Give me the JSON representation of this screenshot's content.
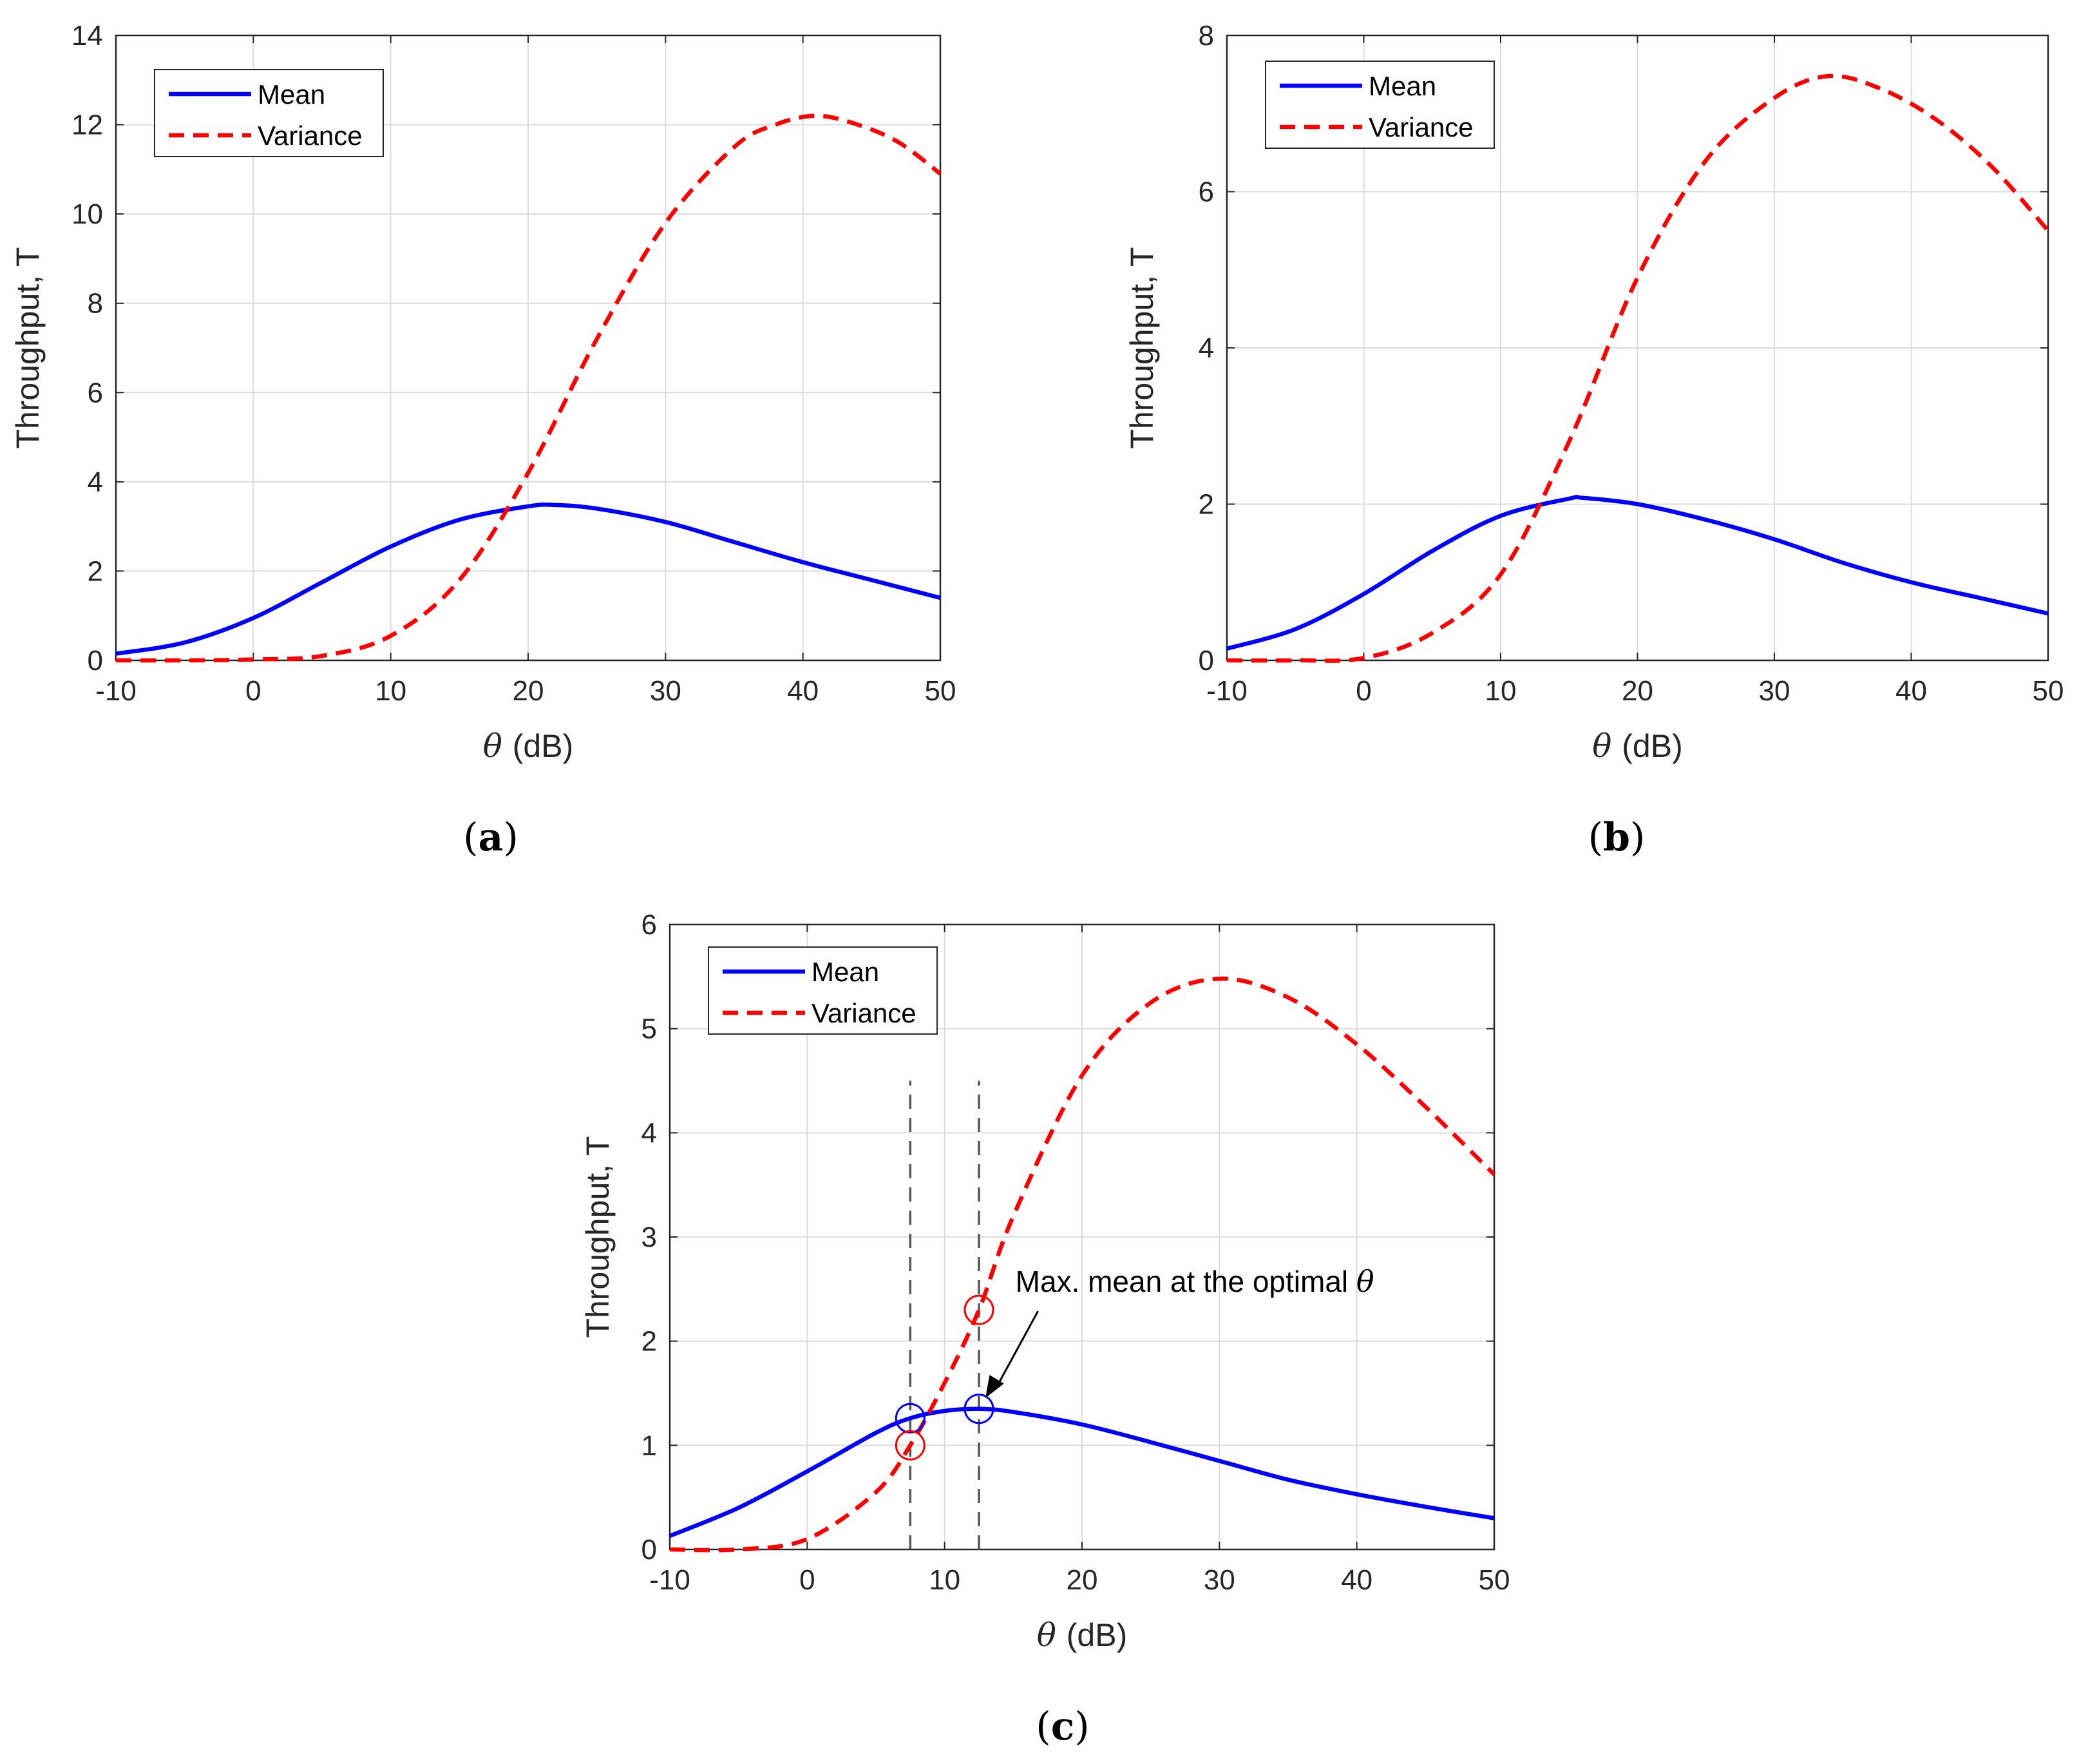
{
  "chart_data": [
    {
      "id": "a",
      "type": "line",
      "panel_label": "(a)",
      "xlabel": "(dB)",
      "xlabel_symbol": "θ",
      "ylabel": "Throughput, T",
      "xlim": [
        -10,
        50
      ],
      "ylim": [
        0,
        14
      ],
      "xticks": [
        -10,
        0,
        10,
        20,
        30,
        40,
        50
      ],
      "yticks": [
        0,
        2,
        4,
        6,
        8,
        10,
        12,
        14
      ],
      "grid": true,
      "legend": {
        "placement": "top-left",
        "entries": [
          "Mean",
          "Variance"
        ]
      },
      "series": [
        {
          "name": "Mean",
          "color": "#0000ff",
          "style": "solid",
          "x": [
            -10,
            -5,
            0,
            5,
            10,
            15,
            20,
            22,
            25,
            30,
            35,
            40,
            45,
            50
          ],
          "values": [
            0.15,
            0.4,
            0.95,
            1.75,
            2.55,
            3.15,
            3.45,
            3.48,
            3.4,
            3.1,
            2.65,
            2.2,
            1.8,
            1.4
          ]
        },
        {
          "name": "Variance",
          "color": "#ff0000",
          "style": "dashed",
          "x": [
            -10,
            -5,
            0,
            5,
            10,
            15,
            20,
            25,
            30,
            35,
            38,
            41,
            44,
            47,
            50
          ],
          "values": [
            0,
            0,
            0.02,
            0.1,
            0.55,
            1.8,
            4.2,
            7.2,
            9.8,
            11.5,
            12.0,
            12.2,
            12.0,
            11.6,
            10.9
          ]
        }
      ]
    },
    {
      "id": "b",
      "type": "line",
      "panel_label": "(b)",
      "xlabel": "(dB)",
      "xlabel_symbol": "θ",
      "ylabel": "Throughput, T",
      "xlim": [
        -10,
        50
      ],
      "ylim": [
        0,
        8
      ],
      "xticks": [
        -10,
        0,
        10,
        20,
        30,
        40,
        50
      ],
      "yticks": [
        0,
        2,
        4,
        6,
        8
      ],
      "grid": true,
      "legend": {
        "placement": "top-left",
        "entries": [
          "Mean",
          "Variance"
        ]
      },
      "series": [
        {
          "name": "Mean",
          "color": "#0000ff",
          "style": "solid",
          "x": [
            -10,
            -5,
            0,
            5,
            10,
            15,
            16,
            20,
            25,
            30,
            35,
            40,
            45,
            50
          ],
          "values": [
            0.15,
            0.4,
            0.85,
            1.4,
            1.85,
            2.07,
            2.08,
            2.0,
            1.8,
            1.55,
            1.25,
            1.0,
            0.8,
            0.6
          ]
        },
        {
          "name": "Variance",
          "color": "#ff0000",
          "style": "dashed",
          "x": [
            -10,
            -5,
            0,
            5,
            10,
            15,
            20,
            25,
            30,
            34,
            38,
            42,
            46,
            50
          ],
          "values": [
            0,
            0,
            0.03,
            0.35,
            1.1,
            2.8,
            4.9,
            6.4,
            7.2,
            7.48,
            7.3,
            6.9,
            6.3,
            5.5
          ]
        }
      ]
    },
    {
      "id": "c",
      "type": "line",
      "panel_label": "(c)",
      "xlabel": "(dB)",
      "xlabel_symbol": "θ",
      "ylabel": "Throughput, T",
      "xlim": [
        -10,
        50
      ],
      "ylim": [
        0,
        6
      ],
      "xticks": [
        -10,
        0,
        10,
        20,
        30,
        40,
        50
      ],
      "yticks": [
        0,
        1,
        2,
        3,
        4,
        5,
        6
      ],
      "grid": true,
      "legend": {
        "placement": "top-left",
        "entries": [
          "Mean",
          "Variance"
        ]
      },
      "series": [
        {
          "name": "Mean",
          "color": "#0000ff",
          "style": "solid",
          "x": [
            -10,
            -5,
            0,
            5,
            7.5,
            10,
            12.5,
            15,
            20,
            25,
            30,
            35,
            40,
            45,
            50
          ],
          "values": [
            0.13,
            0.4,
            0.75,
            1.12,
            1.26,
            1.33,
            1.35,
            1.32,
            1.2,
            1.03,
            0.85,
            0.67,
            0.53,
            0.41,
            0.3
          ]
        },
        {
          "name": "Variance",
          "color": "#ff0000",
          "style": "dashed",
          "x": [
            -10,
            -5,
            0,
            5,
            7.5,
            10,
            12.5,
            15,
            20,
            25,
            30,
            35,
            40,
            45,
            50
          ],
          "values": [
            0,
            0,
            0.1,
            0.55,
            1.0,
            1.6,
            2.3,
            3.2,
            4.55,
            5.25,
            5.48,
            5.3,
            4.85,
            4.25,
            3.6
          ]
        }
      ],
      "vlines": [
        7.5,
        12.5
      ],
      "vline_top": 4.5,
      "markers": [
        {
          "x": 7.5,
          "y": 1.26,
          "color": "#0000ff"
        },
        {
          "x": 12.5,
          "y": 1.35,
          "color": "#0000ff"
        },
        {
          "x": 7.5,
          "y": 1.0,
          "color": "#ff0000"
        },
        {
          "x": 12.5,
          "y": 2.3,
          "color": "#ff0000"
        }
      ],
      "annotation": {
        "text": "Max. mean at the optimal",
        "symbol": "θ",
        "x": 17.5,
        "y": 2.35,
        "target_x": 12.5,
        "target_y": 1.38
      }
    }
  ]
}
